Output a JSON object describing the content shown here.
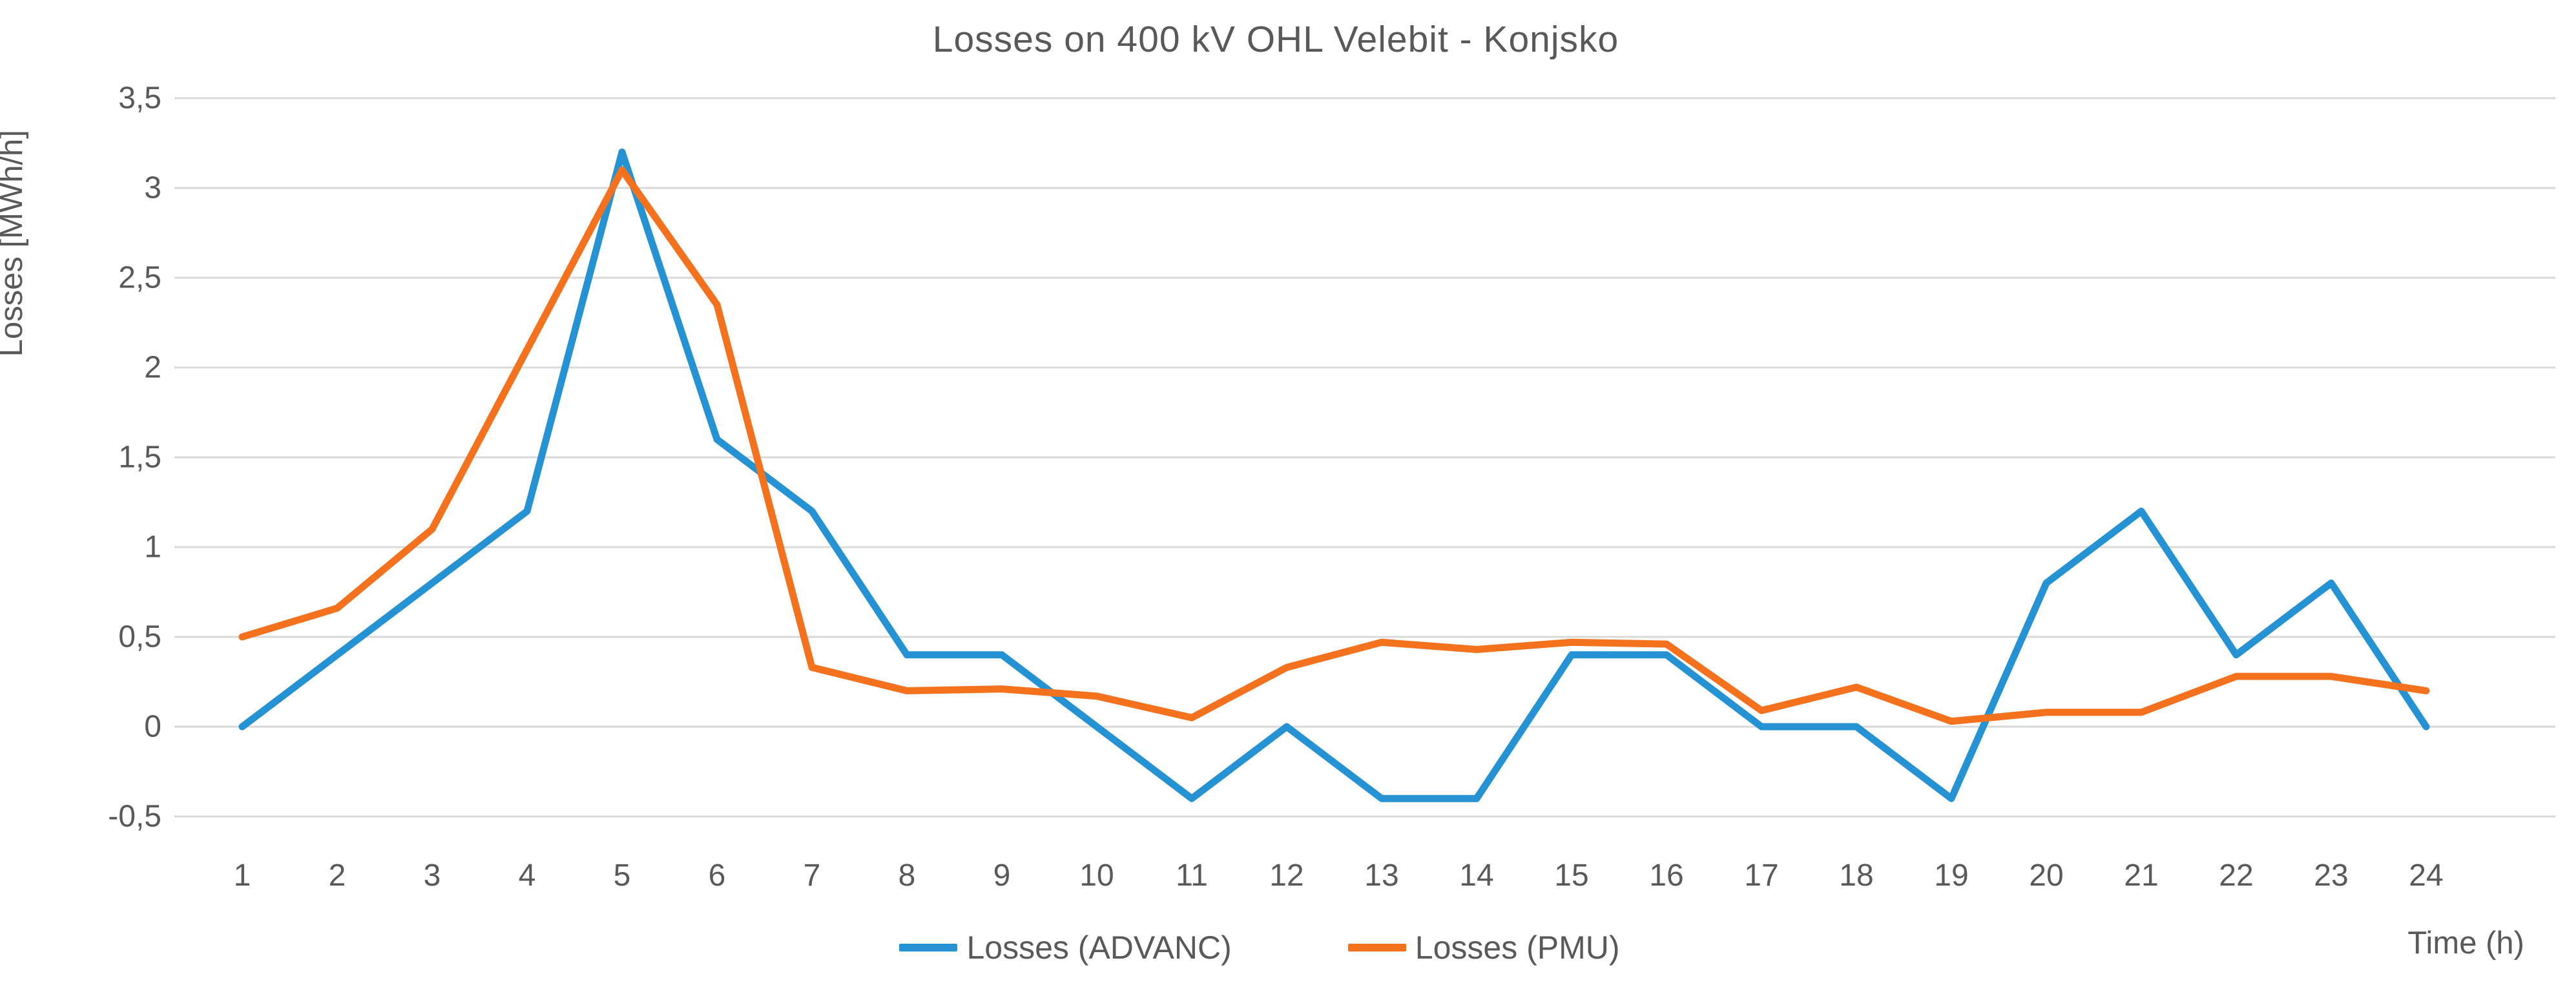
{
  "title": "Losses on 400 kV OHL Velebit - Konjsko",
  "colors": {
    "advanc_line": "#2592D3",
    "pmu_line": "#F4711D",
    "gridline": "#D9D9D9",
    "text": "#595959",
    "background": "#FFFFFF"
  },
  "chart_data": {
    "type": "line",
    "title": "Losses on 400 kV OHL Velebit - Konjsko",
    "xlabel": "Time (h)",
    "ylabel": "Losses [MWh/h]",
    "x": [
      1,
      2,
      3,
      4,
      5,
      6,
      7,
      8,
      9,
      10,
      11,
      12,
      13,
      14,
      15,
      16,
      17,
      18,
      19,
      20,
      21,
      22,
      23,
      24
    ],
    "series": [
      {
        "name": "Losses (ADVANC)",
        "color": "#2592D3",
        "values": [
          0,
          0.4,
          0.8,
          1.2,
          3.2,
          1.6,
          1.2,
          0.4,
          0.4,
          0,
          -0.4,
          0,
          -0.4,
          -0.4,
          0.4,
          0.4,
          0,
          0,
          -0.4,
          0.8,
          1.2,
          0.4,
          0.8,
          0
        ]
      },
      {
        "name": "Losses (PMU)",
        "color": "#F4711D",
        "values": [
          0.5,
          0.66,
          1.1,
          2.1,
          3.1,
          2.35,
          0.33,
          0.2,
          0.21,
          0.17,
          0.05,
          0.33,
          0.47,
          0.43,
          0.47,
          0.46,
          0.09,
          0.22,
          0.03,
          0.08,
          0.08,
          0.28,
          0.28,
          0.2
        ]
      }
    ],
    "ylim": [
      -0.5,
      3.5
    ],
    "ytick_values": [
      3.5,
      3,
      2.5,
      2,
      1.5,
      1,
      0.5,
      0,
      -0.5
    ],
    "ytick_labels": [
      "3,5",
      "3",
      "2,5",
      "2",
      "1,5",
      "1",
      "0,5",
      "0",
      "-0,5"
    ],
    "decimal_separator": ",",
    "grid": "horizontal",
    "legend_position": "bottom-center"
  }
}
